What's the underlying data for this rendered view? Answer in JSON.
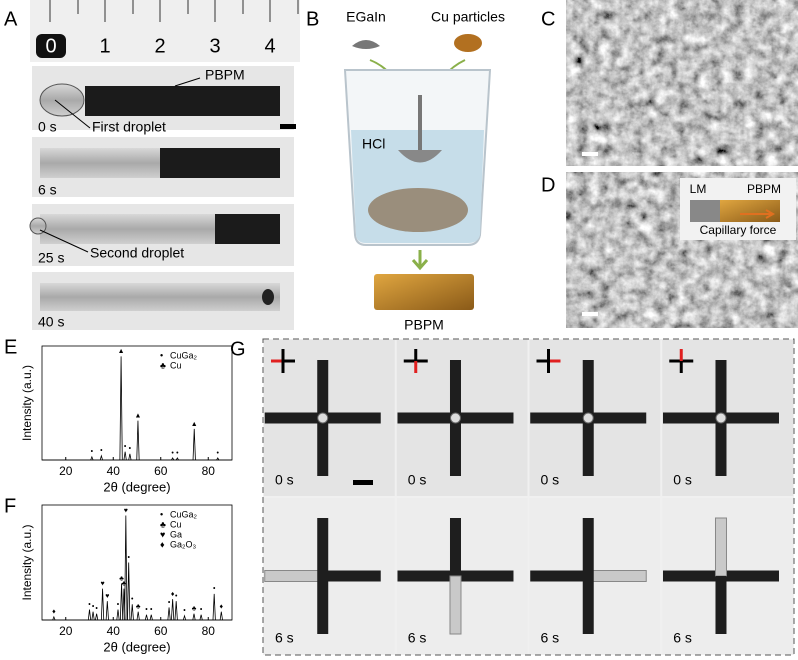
{
  "panels": {
    "A": {
      "label": "A",
      "ruler": [
        "0",
        "1",
        "2",
        "3",
        "4"
      ],
      "annotations": [
        "PBPM",
        "First droplet",
        "Second droplet"
      ],
      "times": [
        "0 s",
        "6 s",
        "25 s",
        "40 s"
      ]
    },
    "B": {
      "label": "B",
      "items": [
        "EGaIn",
        "Cu particles",
        "HCl",
        "PBPM"
      ]
    },
    "C": {
      "label": "C"
    },
    "D": {
      "label": "D",
      "inset": [
        "LM",
        "PBPM",
        "Capillary force"
      ]
    },
    "G": {
      "label": "G",
      "times": [
        "0 s",
        "0 s",
        "0 s",
        "0 s",
        "6 s",
        "6 s",
        "6 s",
        "6 s"
      ]
    }
  },
  "chart_data": [
    {
      "type": "spectrum",
      "label": "E",
      "xlabel": "2θ (degree)",
      "ylabel": "Intensity (a.u.)",
      "xlim": [
        10,
        90
      ],
      "xticks": [
        20,
        40,
        60,
        80
      ],
      "ylim": [
        0,
        110
      ],
      "legend": [
        {
          "symbol": "•",
          "name": "CuGa₂"
        },
        {
          "symbol": "♣",
          "name": "Cu"
        }
      ],
      "x": [
        31,
        35,
        43.3,
        45,
        47,
        50.4,
        65,
        67,
        74.1,
        84
      ],
      "values": [
        3,
        4,
        100,
        8,
        6,
        38,
        2,
        2,
        30,
        2
      ],
      "peak_labels": [
        "•",
        "•",
        "▲",
        "•",
        "•",
        "▲",
        "•",
        "•",
        "▲",
        "•"
      ]
    },
    {
      "type": "spectrum",
      "label": "F",
      "xlabel": "2θ (degree)",
      "ylabel": "Intensity (a.u.)",
      "xlim": [
        10,
        90
      ],
      "xticks": [
        20,
        40,
        60,
        80
      ],
      "ylim": [
        0,
        110
      ],
      "legend": [
        {
          "symbol": "•",
          "name": "CuGa₂"
        },
        {
          "symbol": "♣",
          "name": "Cu"
        },
        {
          "symbol": "♥",
          "name": "Ga"
        },
        {
          "symbol": "♦",
          "name": "Ga₂O₃"
        }
      ],
      "x": [
        15,
        30,
        31.5,
        33,
        35.5,
        37.5,
        42,
        43.5,
        44.5,
        45.3,
        46.5,
        48,
        50.5,
        54,
        56,
        63.5,
        65,
        66.5,
        70,
        74,
        77,
        82.5,
        85.5
      ],
      "values": [
        3,
        10,
        8,
        6,
        30,
        18,
        10,
        35,
        30,
        100,
        55,
        15,
        8,
        5,
        5,
        12,
        20,
        18,
        4,
        6,
        5,
        25,
        8
      ],
      "peak_labels": [
        "♦",
        "•",
        "•",
        "•",
        "♥",
        "♥",
        "•",
        "♣",
        "♣",
        "♥",
        "•",
        "•",
        "♣",
        "•",
        "•",
        "•",
        "♦",
        "•",
        "•",
        "♣",
        "•",
        "•",
        "♦"
      ]
    }
  ]
}
